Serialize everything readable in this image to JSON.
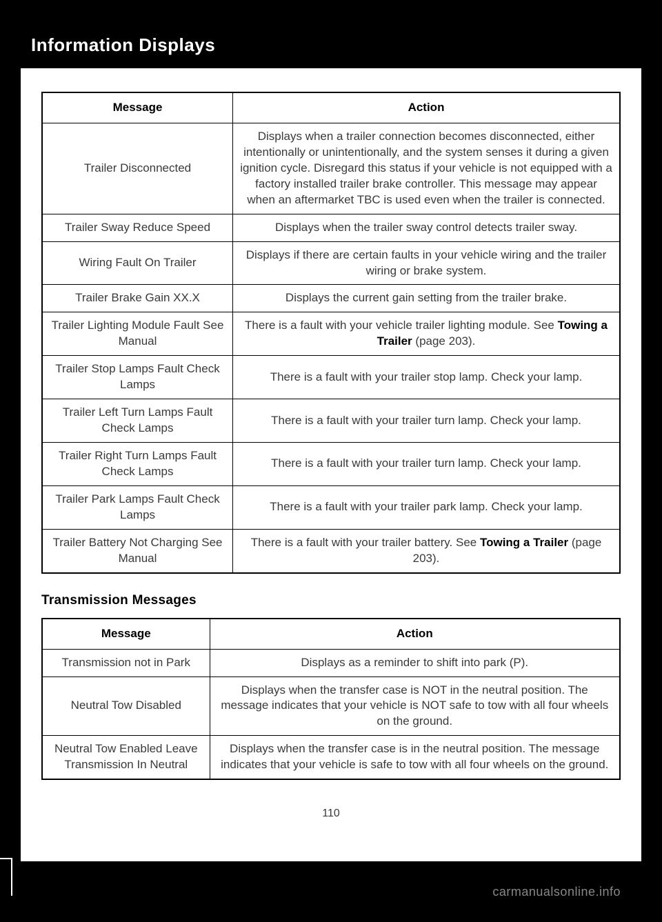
{
  "header": {
    "title": "Information Displays"
  },
  "table1": {
    "columns": [
      "Message",
      "Action"
    ],
    "rows": [
      {
        "msg": "Trailer Disconnected",
        "act": "Displays when a trailer connection becomes disconnected, either intentionally or unintentionally, and the system senses it during a given ignition cycle. Disregard this status if your vehicle is not equipped with a factory installed trailer brake controller. This message may appear when an aftermarket TBC is used even when the trailer is connected."
      },
      {
        "msg": "Trailer Sway Reduce Speed",
        "act": "Displays when the trailer sway control detects trailer sway."
      },
      {
        "msg": "Wiring Fault On Trailer",
        "act": "Displays if there are certain faults in your vehicle wiring and the trailer wiring or brake system."
      },
      {
        "msg": "Trailer Brake Gain XX.X",
        "act": "Displays the current gain setting from the trailer brake."
      },
      {
        "msg": "Trailer Lighting Module Fault See Manual",
        "act_pre": "There is a fault with your vehicle trailer lighting module. See ",
        "act_bold": "Towing a Trailer",
        "act_post": " (page 203)."
      },
      {
        "msg": "Trailer Stop Lamps Fault Check Lamps",
        "act": "There is a fault with your trailer stop lamp. Check your lamp."
      },
      {
        "msg": "Trailer Left Turn Lamps Fault Check Lamps",
        "act": "There is a fault with your trailer turn lamp. Check your lamp."
      },
      {
        "msg": "Trailer Right Turn Lamps Fault Check Lamps",
        "act": "There is a fault with your trailer turn lamp. Check your lamp."
      },
      {
        "msg": "Trailer Park Lamps Fault Check Lamps",
        "act": "There is a fault with your trailer park lamp. Check your lamp."
      },
      {
        "msg": "Trailer Battery Not Charging See Manual",
        "act_pre": "There is a fault with your trailer battery.  See ",
        "act_bold": "Towing a Trailer",
        "act_post": " (page 203)."
      }
    ]
  },
  "section2_heading": "Transmission Messages",
  "table2": {
    "columns": [
      "Message",
      "Action"
    ],
    "rows": [
      {
        "msg": "Transmission not in Park",
        "act": "Displays as a reminder to shift into park (P)."
      },
      {
        "msg": "Neutral Tow Disabled",
        "act": "Displays when the transfer case is NOT in the neutral position. The message indicates that your vehicle is NOT safe to tow with all four wheels on the ground."
      },
      {
        "msg": "Neutral Tow Enabled Leave Transmission In Neutral",
        "act": "Displays when the transfer case is in the neutral position. The message indicates that your vehicle is safe to tow with all four wheels on the ground."
      }
    ]
  },
  "page_number": "110",
  "watermark": "carmanualsonline.info"
}
